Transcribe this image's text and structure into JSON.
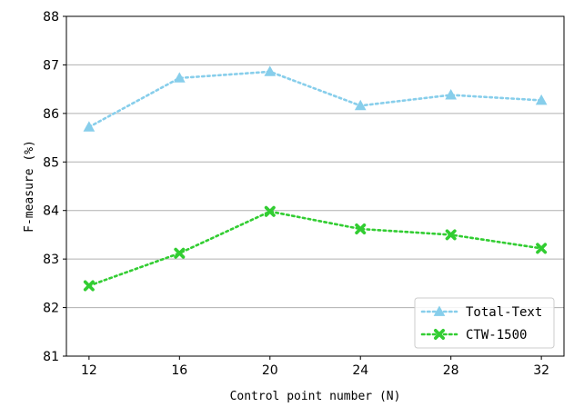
{
  "chart_data": {
    "type": "line",
    "title": "",
    "xlabel": "Control point number (N)",
    "ylabel": "F-measure (%)",
    "x": [
      12,
      16,
      20,
      24,
      28,
      32
    ],
    "xticks": [
      "12",
      "16",
      "20",
      "24",
      "28",
      "32"
    ],
    "xlim": [
      11,
      33
    ],
    "ylim": [
      81,
      88
    ],
    "yticks": [
      "81",
      "82",
      "83",
      "84",
      "85",
      "86",
      "87",
      "88"
    ],
    "grid": "horizontal",
    "legend_position": "bottom-right",
    "series": [
      {
        "name": "Total-Text",
        "values": [
          85.72,
          86.73,
          86.86,
          86.16,
          86.38,
          86.27
        ],
        "color": "#87ceeb",
        "marker": "triangle",
        "line_style": "dotted"
      },
      {
        "name": "CTW-1500",
        "values": [
          82.45,
          83.12,
          83.98,
          83.62,
          83.5,
          83.22
        ],
        "color": "#32cd32",
        "marker": "x",
        "line_style": "dotted"
      }
    ]
  }
}
